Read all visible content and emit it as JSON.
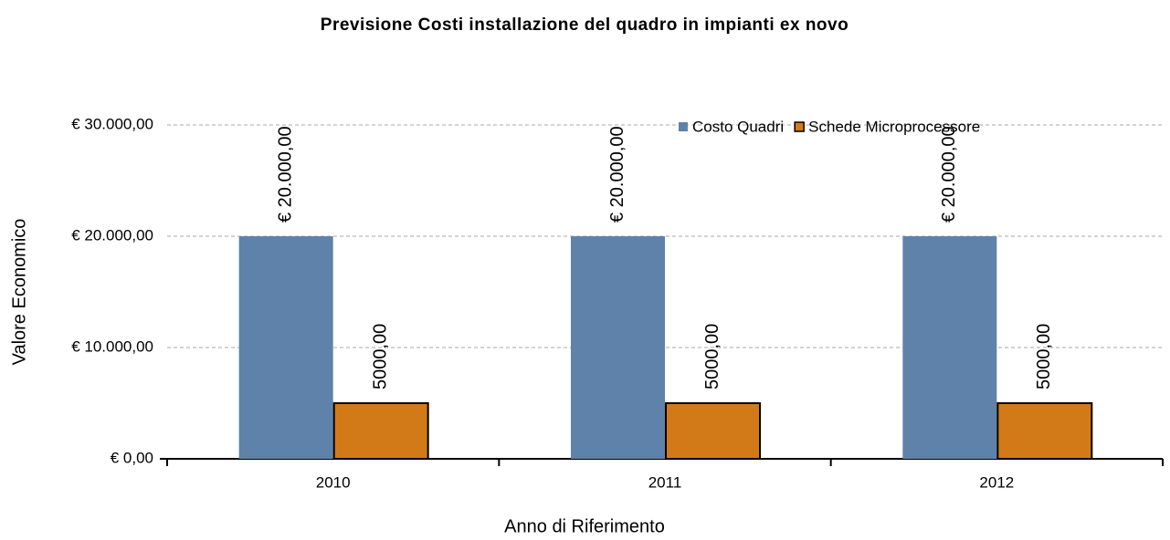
{
  "chart_data": {
    "type": "bar",
    "title": "Previsione Costi installazione del quadro in impianti ex novo",
    "x_label": "Anno di Riferimento",
    "y_label": "Valore Economico",
    "categories": [
      "2010",
      "2011",
      "2012"
    ],
    "series": [
      {
        "name": "Costo Quadri",
        "color": "#5f82aa",
        "values": [
          20000,
          20000,
          20000
        ],
        "value_labels": [
          "€ 20.000,00",
          "€ 20.000,00",
          "€ 20.000,00"
        ]
      },
      {
        "name": "Schede Microprocessore",
        "color": "#d27a18",
        "values": [
          5000,
          5000,
          5000
        ],
        "value_labels": [
          "5000,00",
          "5000,00",
          "5000,00"
        ]
      }
    ],
    "ylim": [
      0,
      30000
    ],
    "yticks": [
      {
        "value": 0,
        "label": "€ 0,00"
      },
      {
        "value": 10000,
        "label": "€ 10.000,00"
      },
      {
        "value": 20000,
        "label": "€ 20.000,00"
      },
      {
        "value": 30000,
        "label": "€ 30.000,00"
      }
    ],
    "grid": true,
    "legend": "top-right"
  }
}
